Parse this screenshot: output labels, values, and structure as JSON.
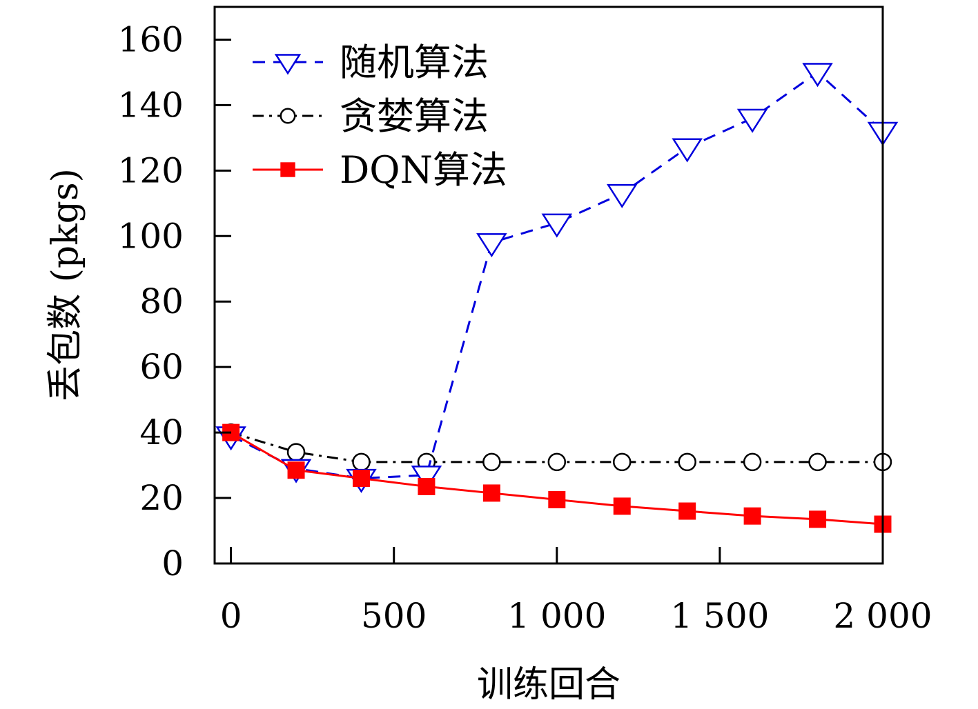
{
  "chart_data": {
    "type": "line",
    "xlabel": "训练回合",
    "ylabel": "丢包数 (pkgs)",
    "xlim": [
      -50,
      2000
    ],
    "ylim": [
      0,
      170
    ],
    "xticks": [
      0,
      500,
      1000,
      1500,
      2000
    ],
    "xtick_labels": [
      "0",
      "500",
      "1 000",
      "1 500",
      "2 000"
    ],
    "yticks": [
      0,
      20,
      40,
      60,
      80,
      100,
      120,
      140,
      160
    ],
    "ytick_labels": [
      "0",
      "20",
      "40",
      "60",
      "80",
      "100",
      "120",
      "140",
      "160"
    ],
    "grid": false,
    "legend_position": "top-left",
    "x": [
      0,
      200,
      400,
      600,
      800,
      1000,
      1200,
      1400,
      1600,
      1800,
      2000
    ],
    "series": [
      {
        "name": "随机算法",
        "color": "#0000dd",
        "line_style": "dashed",
        "marker": "triangle-down-open",
        "values": [
          39,
          29,
          26,
          27,
          98,
          104,
          113,
          127,
          136,
          150,
          132
        ]
      },
      {
        "name": "贪婪算法",
        "color": "#000000",
        "line_style": "dash-dot",
        "marker": "circle-open",
        "values": [
          40,
          34,
          31,
          31,
          31,
          31,
          31,
          31,
          31,
          31,
          31
        ]
      },
      {
        "name": "DQN算法",
        "color": "#ff0000",
        "line_style": "solid",
        "marker": "square-filled",
        "values": [
          40,
          28.5,
          26,
          23.5,
          21.5,
          19.5,
          17.5,
          16,
          14.5,
          13.5,
          12
        ]
      }
    ]
  }
}
